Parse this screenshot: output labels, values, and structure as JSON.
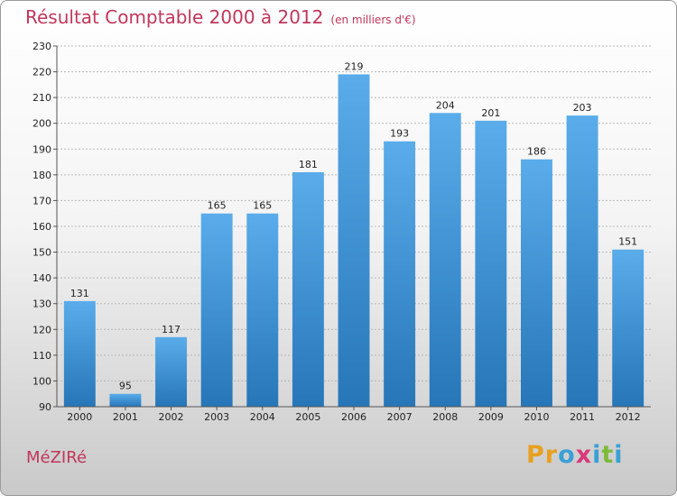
{
  "header": {
    "title": "Résultat Comptable 2000 à 2012",
    "unit": "(en milliers d'€)"
  },
  "footer": {
    "commune": "MéZIRé",
    "logo_text": "Proxiti",
    "logo_colors": [
      "#e8a020",
      "#e8a020",
      "#39a0d6",
      "#d93a7a",
      "#39a0d6",
      "#7cbb3a",
      "#39a0d6"
    ]
  },
  "colors": {
    "title": "#c0365a",
    "bar_top": "#5aacea",
    "bar_bottom": "#2676b8"
  },
  "chart_data": {
    "type": "bar",
    "title": "Résultat Comptable 2000 à 2012",
    "subtitle": "(en milliers d'€)",
    "categories": [
      "2000",
      "2001",
      "2002",
      "2003",
      "2004",
      "2005",
      "2006",
      "2007",
      "2008",
      "2009",
      "2010",
      "2011",
      "2012"
    ],
    "values": [
      131,
      95,
      117,
      165,
      165,
      181,
      219,
      193,
      204,
      201,
      186,
      203,
      151
    ],
    "ylim": [
      90,
      230
    ],
    "yticks": [
      90,
      100,
      110,
      120,
      130,
      140,
      150,
      160,
      170,
      180,
      190,
      200,
      210,
      220,
      230
    ],
    "grid": true
  }
}
